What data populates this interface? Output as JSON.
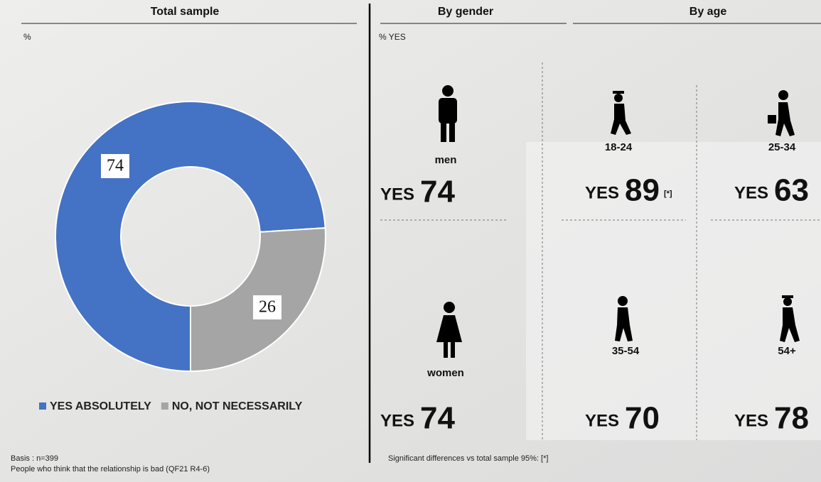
{
  "chart_data": {
    "type": "pie",
    "title": "Total sample",
    "subtitle": "%",
    "categories": [
      "YES ABSOLUTELY",
      "NO, NOT NECESSARILY"
    ],
    "values": [
      74,
      26
    ],
    "colors": [
      "#4472c4",
      "#a5a5a5"
    ],
    "donut": true,
    "legend": "bottom"
  },
  "gender": {
    "title": "By gender",
    "subtitle": "% YES",
    "groups": [
      {
        "label": "men",
        "value": 74
      },
      {
        "label": "women",
        "value": 74
      }
    ]
  },
  "age": {
    "title": "By age",
    "groups": [
      {
        "label": "18-24",
        "value": 89,
        "note": "[*]"
      },
      {
        "label": "25-34",
        "value": 63
      },
      {
        "label": "35-54",
        "value": 70
      },
      {
        "label": "54+",
        "value": 78
      }
    ]
  },
  "yes_label": "YES",
  "basis": "Basis : n=399",
  "footnote": "People who think that the relationship is bad (QF21 R4-6)",
  "significance": "Significant differences vs total sample 95%: [*]"
}
